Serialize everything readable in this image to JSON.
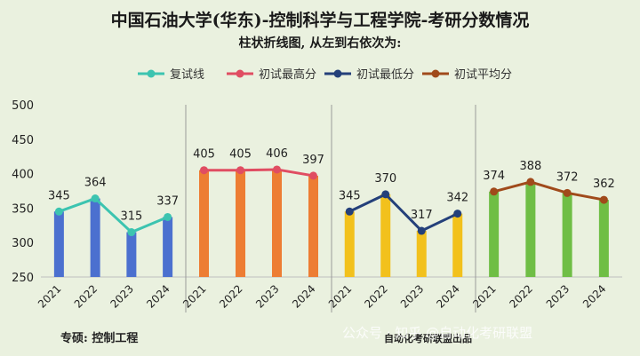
{
  "title": "中国石油大学(华东)-控制科学与工程学院-考研分数情况",
  "subtitle": "柱状折线图, 从左到右依次为:",
  "legend": [
    {
      "label": "复试线",
      "color": "#3cc4b0"
    },
    {
      "label": "初试最高分",
      "color": "#e04d62"
    },
    {
      "label": "初试最低分",
      "color": "#24407a"
    },
    {
      "label": "初试平均分",
      "color": "#a04a1b"
    }
  ],
  "footer": {
    "left": "专硕: 控制工程",
    "right": "自动化考研联盟出品",
    "watermark": "公众号 · 知乎 @自动化考研联盟"
  },
  "chart_data": {
    "type": "bar",
    "ylim": [
      250,
      500
    ],
    "yticks": [
      250,
      300,
      350,
      400,
      450,
      500
    ],
    "categories": [
      "2021",
      "2022",
      "2023",
      "2024"
    ],
    "panels": [
      {
        "name": "复试线",
        "bar_color": "#4b70cf",
        "line_color": "#3cc4b0",
        "values": [
          345,
          364,
          315,
          337
        ]
      },
      {
        "name": "初试最高分",
        "bar_color": "#ed7d33",
        "line_color": "#e04d62",
        "values": [
          405,
          405,
          406,
          397
        ]
      },
      {
        "name": "初试最低分",
        "bar_color": "#f2c11c",
        "line_color": "#24407a",
        "values": [
          345,
          370,
          317,
          342
        ]
      },
      {
        "name": "初试平均分",
        "bar_color": "#6fbe45",
        "line_color": "#a04a1b",
        "values": [
          374,
          388,
          372,
          362
        ]
      }
    ]
  }
}
